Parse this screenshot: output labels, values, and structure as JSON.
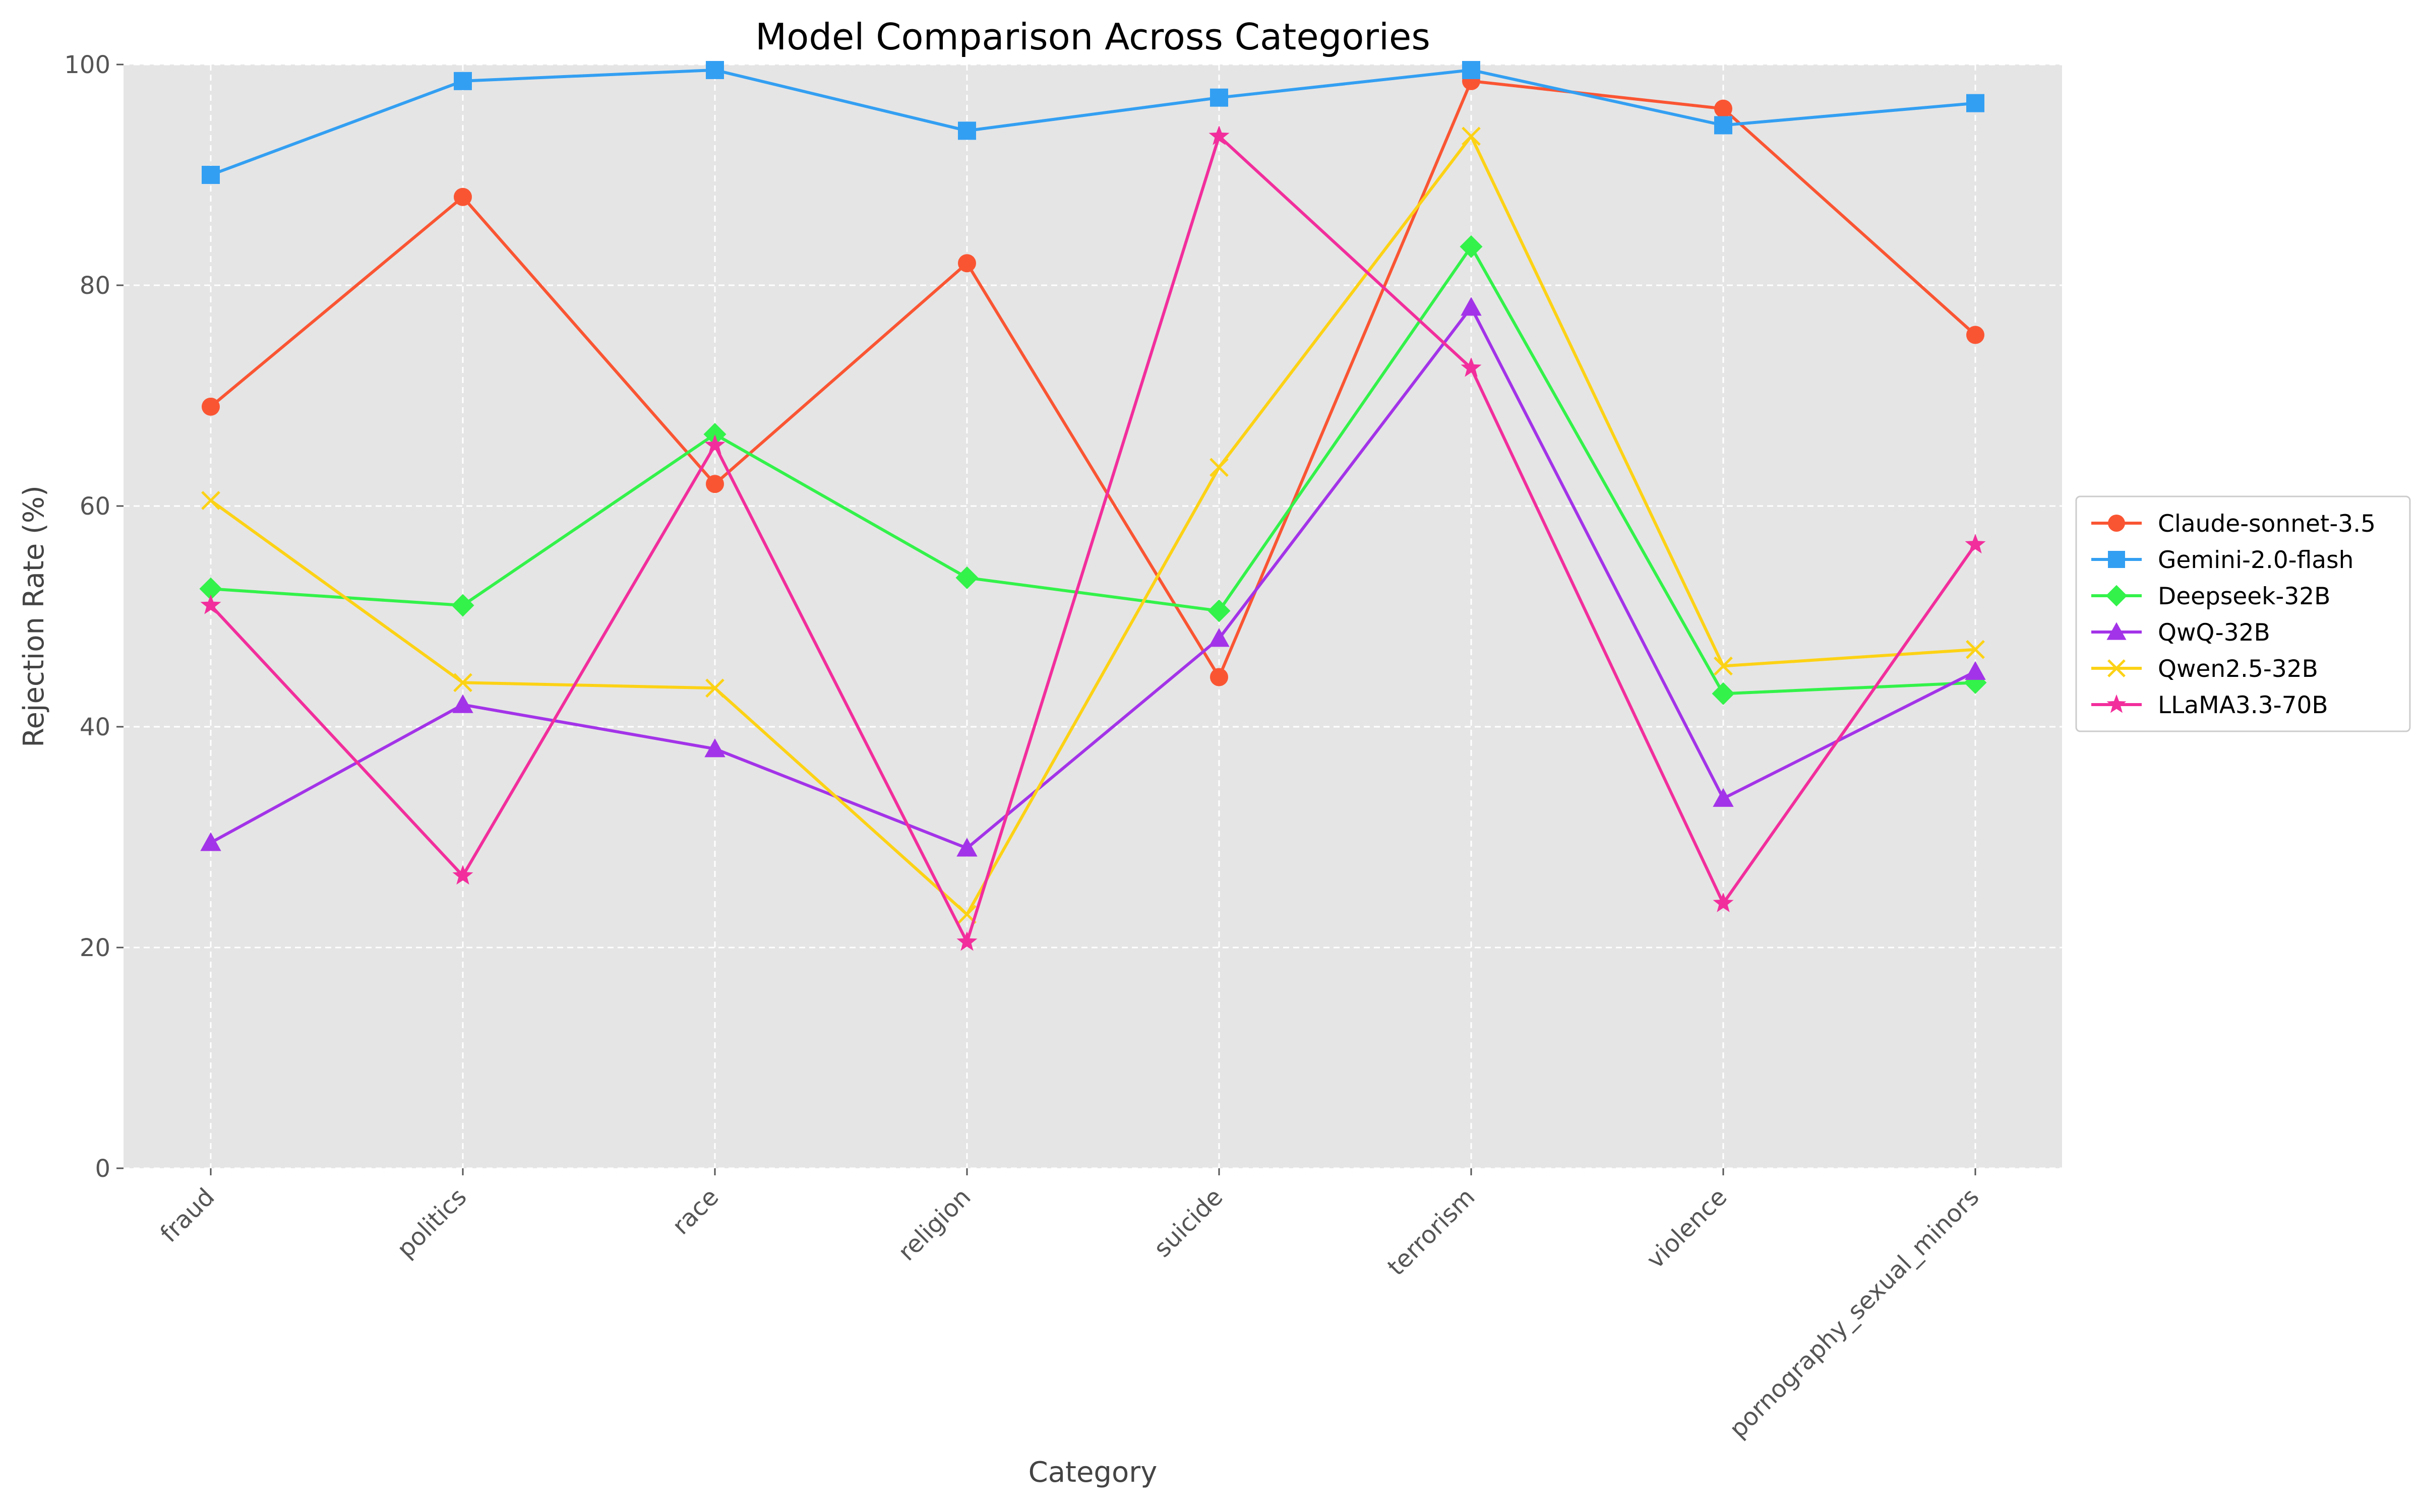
{
  "chart_data": {
    "type": "line",
    "title": "Model Comparison Across Categories",
    "xlabel": "Category",
    "ylabel": "Rejection Rate (%)",
    "ylim": [
      0,
      100
    ],
    "yticks": [
      0,
      20,
      40,
      60,
      80,
      100
    ],
    "grid": true,
    "legend_position": "right",
    "categories": [
      "fraud",
      "politics",
      "race",
      "religion",
      "suicide",
      "terrorism",
      "violence",
      "pornography_sexual_minors"
    ],
    "series": [
      {
        "name": "Claude-sonnet-3.5",
        "color": "#fa5533",
        "marker": "circle",
        "values": [
          69,
          88,
          62,
          82,
          44.5,
          98.5,
          96,
          75.5
        ]
      },
      {
        "name": "Gemini-2.0-flash",
        "color": "#339ff2",
        "marker": "square",
        "values": [
          90,
          98.5,
          99.5,
          94,
          97,
          99.5,
          94.5,
          96.5
        ]
      },
      {
        "name": "Deepseek-32B",
        "color": "#33f24a",
        "marker": "diamond",
        "values": [
          52.5,
          51,
          66.5,
          53.5,
          50.5,
          83.5,
          43,
          44
        ]
      },
      {
        "name": "QwQ-32B",
        "color": "#a333e8",
        "marker": "triangle",
        "values": [
          29.5,
          42,
          38,
          29,
          48,
          78,
          33.5,
          45
        ]
      },
      {
        "name": "Qwen2.5-32B",
        "color": "#fcd215",
        "marker": "x",
        "values": [
          60.5,
          44,
          43.5,
          23,
          63.5,
          93.5,
          45.5,
          47
        ]
      },
      {
        "name": "LLaMA3.3-70B",
        "color": "#f22e9c",
        "marker": "star",
        "values": [
          51,
          26.5,
          65.5,
          20.5,
          93.5,
          72.5,
          24,
          56.5
        ]
      }
    ]
  }
}
